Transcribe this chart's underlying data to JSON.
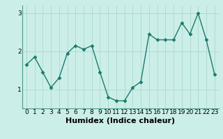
{
  "x": [
    0,
    1,
    2,
    3,
    4,
    5,
    6,
    7,
    8,
    9,
    10,
    11,
    12,
    13,
    14,
    15,
    16,
    17,
    18,
    19,
    20,
    21,
    22,
    23
  ],
  "y": [
    1.65,
    1.85,
    1.45,
    1.05,
    1.3,
    1.95,
    2.15,
    2.05,
    2.15,
    1.45,
    0.8,
    0.7,
    0.7,
    1.05,
    1.2,
    2.45,
    2.3,
    2.3,
    2.3,
    2.75,
    2.45,
    3.0,
    2.3,
    1.4
  ],
  "xlabel": "Humidex (Indice chaleur)",
  "yticks": [
    1,
    2,
    3
  ],
  "ylim": [
    0.5,
    3.2
  ],
  "xlim": [
    -0.5,
    23.5
  ],
  "line_color": "#1a7a6e",
  "bg_color": "#cceee8",
  "grid_color": "#aad8d0",
  "marker": "D",
  "markersize": 2.5,
  "linewidth": 1.0,
  "xlabel_fontsize": 8,
  "tick_fontsize": 6.5
}
